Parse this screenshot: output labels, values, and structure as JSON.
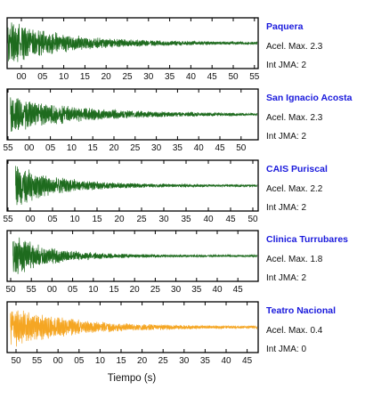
{
  "chart_data": {
    "type": "line",
    "xlabel": "Tiempo (s)",
    "colors": {
      "green": "#1e6b1e",
      "orange": "#f5a623",
      "title": "#1a1adc",
      "frame": "#000000"
    },
    "panels": [
      {
        "station": "Paquera",
        "accel": "Acel. Max. 2.3",
        "intensity": "Int JMA: 2",
        "accel_value": 2.3,
        "jma_intensity": 2,
        "color": "#1e6b1e",
        "tick_labels": [
          "00",
          "05",
          "10",
          "15",
          "20",
          "25",
          "30",
          "35",
          "40",
          "45",
          "50",
          "55"
        ],
        "x_range": [
          "",
          ""
        ],
        "waveform": {
          "onset_fraction": 0.0,
          "peak_amplitude": 1.0,
          "decay_rate": 4.2
        }
      },
      {
        "station": "San Ignacio Acosta",
        "accel": "Acel. Max. 2.3",
        "intensity": "Int JMA: 2",
        "accel_value": 2.3,
        "jma_intensity": 2,
        "color": "#1e6b1e",
        "tick_labels": [
          "55",
          "00",
          "05",
          "10",
          "15",
          "20",
          "25",
          "30",
          "35",
          "40",
          "45",
          "50"
        ],
        "waveform": {
          "onset_fraction": 0.01,
          "peak_amplitude": 0.8,
          "decay_rate": 3.6
        }
      },
      {
        "station": "CAIS Puriscal",
        "accel": "Acel. Max. 2.2",
        "intensity": "Int JMA: 2",
        "accel_value": 2.2,
        "jma_intensity": 2,
        "color": "#1e6b1e",
        "tick_labels": [
          "55",
          "00",
          "05",
          "10",
          "15",
          "20",
          "25",
          "30",
          "35",
          "40",
          "45",
          "50"
        ],
        "waveform": {
          "onset_fraction": 0.03,
          "peak_amplitude": 0.95,
          "decay_rate": 5.5
        }
      },
      {
        "station": "Clinica Turrubares",
        "accel": "Acel. Max. 1.8",
        "intensity": "Int JMA: 2",
        "accel_value": 1.8,
        "jma_intensity": 2,
        "color": "#1e6b1e",
        "tick_labels": [
          "50",
          "55",
          "00",
          "05",
          "10",
          "15",
          "20",
          "25",
          "30",
          "35",
          "40",
          "45"
        ],
        "waveform": {
          "onset_fraction": 0.02,
          "peak_amplitude": 0.95,
          "decay_rate": 6.5
        }
      },
      {
        "station": "Teatro Nacional",
        "accel": "Acel. Max. 0.4",
        "intensity": "Int JMA: 0",
        "accel_value": 0.4,
        "jma_intensity": 0,
        "color": "#f5a623",
        "tick_labels": [
          "50",
          "55",
          "00",
          "05",
          "10",
          "15",
          "20",
          "25",
          "30",
          "35",
          "40",
          "45"
        ],
        "waveform": {
          "onset_fraction": 0.01,
          "peak_amplitude": 0.9,
          "decay_rate": 4.0
        }
      }
    ]
  }
}
